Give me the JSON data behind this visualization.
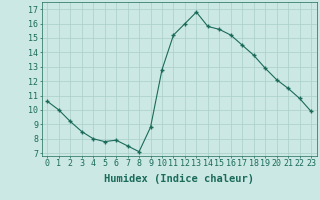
{
  "x": [
    0,
    1,
    2,
    3,
    4,
    5,
    6,
    7,
    8,
    9,
    10,
    11,
    12,
    13,
    14,
    15,
    16,
    17,
    18,
    19,
    20,
    21,
    22,
    23
  ],
  "y": [
    10.6,
    10.0,
    9.2,
    8.5,
    8.0,
    7.8,
    7.9,
    7.5,
    7.1,
    8.8,
    12.8,
    15.2,
    16.0,
    16.8,
    15.8,
    15.6,
    15.2,
    14.5,
    13.8,
    12.9,
    12.1,
    11.5,
    10.8,
    9.9
  ],
  "line_color": "#1a6b5a",
  "marker": "+",
  "marker_size": 3.5,
  "marker_lw": 1.0,
  "bg_color": "#cce8e4",
  "grid_color": "#aacfca",
  "xlabel": "Humidex (Indice chaleur)",
  "ylabel_ticks": [
    7,
    8,
    9,
    10,
    11,
    12,
    13,
    14,
    15,
    16,
    17
  ],
  "ylim": [
    6.8,
    17.5
  ],
  "xlim": [
    -0.5,
    23.5
  ],
  "xlabel_fontsize": 7.5,
  "tick_fontsize": 6.0
}
